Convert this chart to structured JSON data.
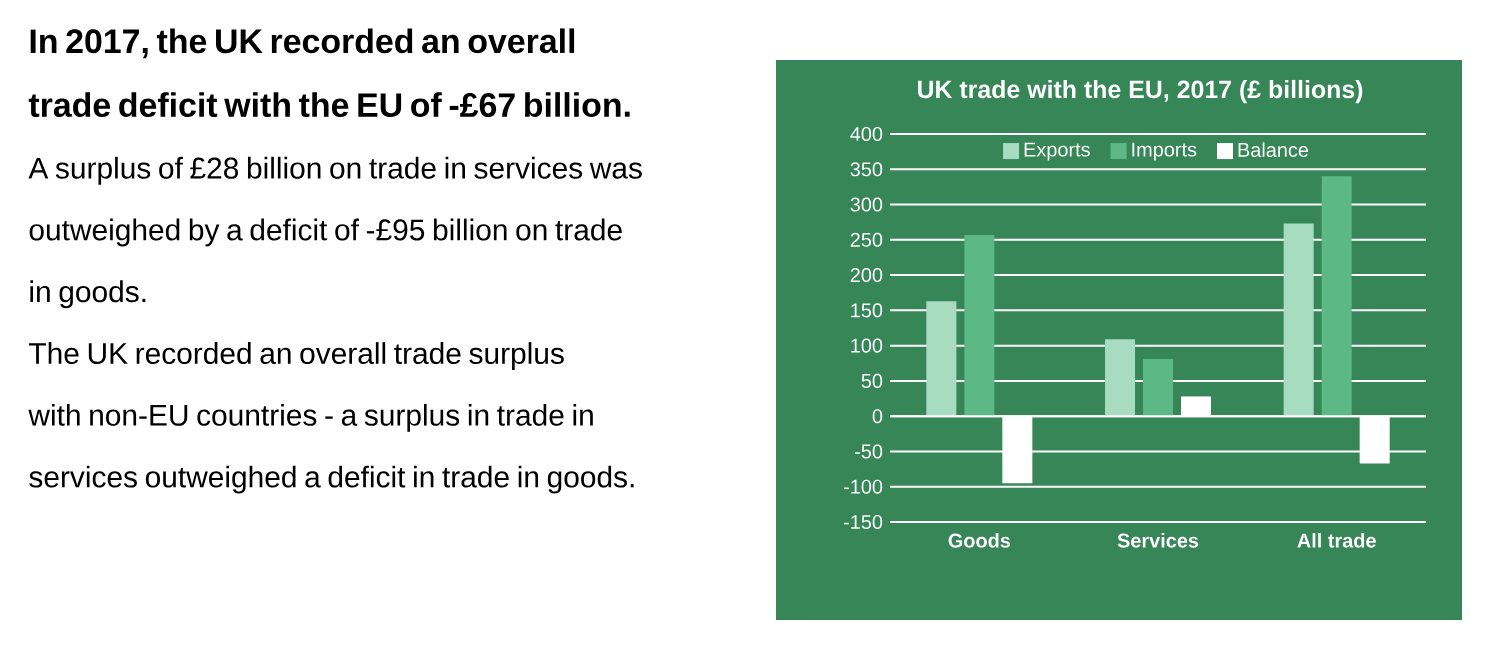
{
  "chart_data": {
    "type": "bar",
    "title": "UK trade with the EU, 2017 (£ billions)",
    "annotations": [
      "In 2017, the UK recorded an overall trade deficit with the EU of -£67 billion.",
      "A surplus of £28 billion on trade in services was outweighed by a deficit of -£95 billion on trade in goods.",
      "The UK recorded an overall trade surplus with non-EU countries - a surplus in trade in services outweighed a deficit in trade in goods."
    ],
    "categories": [
      "Goods",
      "Services",
      "All trade"
    ],
    "series": [
      {
        "name": "Exports",
        "color": "#a8dcc0",
        "values": [
          163,
          109,
          273
        ]
      },
      {
        "name": "Imports",
        "color": "#5cb885",
        "values": [
          257,
          81,
          340
        ]
      },
      {
        "name": "Balance",
        "color": "#ffffff",
        "values": [
          -95,
          28,
          -67
        ]
      }
    ],
    "ylim": [
      -150,
      400
    ],
    "yticks": [
      -150,
      -100,
      -50,
      0,
      50,
      100,
      150,
      200,
      250,
      300,
      350,
      400
    ],
    "grid": "y",
    "legend": "top"
  }
}
